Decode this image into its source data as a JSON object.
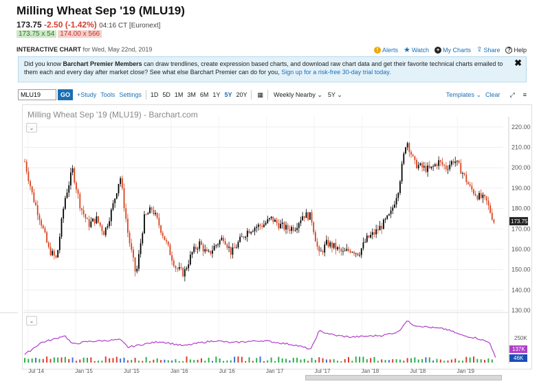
{
  "header": {
    "title": "Milling Wheat Sep '19 (MLU19)",
    "last": "173.75",
    "change": "-2.50 (-1.42%)",
    "time": "04:16 CT [Euronext]",
    "bid": "173.75 x 54",
    "ask": "174.00 x 566",
    "ic_label": "INTERACTIVE CHART",
    "ic_date": "for Wed, May 22nd, 2019"
  },
  "actions": {
    "alerts": "Alerts",
    "watch": "Watch",
    "my_charts": "My Charts",
    "share": "Share",
    "help": "Help"
  },
  "banner": {
    "text_pre": "Did you know ",
    "bold": "Barchart Premier Members",
    "text_post": " can draw trendlines, create expression based charts, and download raw chart data and get their favorite technical charts emailed to them each and every day after market close? See what else Barchart Premier can do for you, ",
    "link": "Sign up for a risk-free 30-day trial today.",
    "close": "✖"
  },
  "toolbar": {
    "symbol": "MLU19",
    "go": "GO",
    "study": "+Study",
    "tools": "Tools",
    "settings": "Settings",
    "periods": [
      "1D",
      "5D",
      "1M",
      "3M",
      "6M",
      "1Y",
      "5Y",
      "20Y"
    ],
    "selected_period": "5Y",
    "interval": "Weekly Nearby",
    "range": "5Y",
    "templates": "Templates",
    "clear": "Clear"
  },
  "colors": {
    "up": "#000000",
    "down": "#d9431e",
    "line": "#b03ec8",
    "accent": "#1a6fb5"
  },
  "chart_data": {
    "type": "candlestick",
    "title": "Milling Wheat Sep '19 (MLU19) - Barchart.com",
    "price_ylim": [
      130,
      225
    ],
    "price_ticks": [
      "220.00",
      "210.00",
      "200.00",
      "190.00",
      "180.00",
      "170.00",
      "160.00",
      "150.00",
      "140.00",
      "130.00"
    ],
    "last_price_label": "173.75",
    "x_ticks": [
      "Jul '14",
      "Jan '15",
      "Jul '15",
      "Jan '16",
      "Jul '16",
      "Jan '17",
      "Jul '17",
      "Jan '18",
      "Jul '18",
      "Jan '19"
    ],
    "x_tick_pos": [
      0.4,
      6.4,
      12.4,
      18.4,
      24.4,
      30.4,
      36.4,
      42.4,
      48.4,
      54.4
    ],
    "x_months": 60,
    "close_path": [
      [
        0,
        203
      ],
      [
        1,
        186
      ],
      [
        2,
        174
      ],
      [
        3,
        160
      ],
      [
        4,
        155
      ],
      [
        5,
        184
      ],
      [
        6,
        199
      ],
      [
        7,
        181
      ],
      [
        8,
        172
      ],
      [
        9,
        175
      ],
      [
        10,
        168
      ],
      [
        11,
        180
      ],
      [
        12,
        196
      ],
      [
        13,
        167
      ],
      [
        14,
        147
      ],
      [
        15,
        175
      ],
      [
        16,
        180
      ],
      [
        17,
        171
      ],
      [
        18,
        161
      ],
      [
        19,
        151
      ],
      [
        20,
        148
      ],
      [
        21,
        158
      ],
      [
        22,
        163
      ],
      [
        23,
        157
      ],
      [
        24,
        162
      ],
      [
        25,
        166
      ],
      [
        26,
        158
      ],
      [
        27,
        164
      ],
      [
        28,
        169
      ],
      [
        29,
        171
      ],
      [
        30,
        172
      ],
      [
        31,
        175
      ],
      [
        32,
        172
      ],
      [
        33,
        170
      ],
      [
        34,
        171
      ],
      [
        35,
        177
      ],
      [
        36,
        176
      ],
      [
        37,
        157
      ],
      [
        38,
        163
      ],
      [
        39,
        161
      ],
      [
        40,
        158
      ],
      [
        41,
        160
      ],
      [
        42,
        158
      ],
      [
        43,
        165
      ],
      [
        44,
        168
      ],
      [
        45,
        172
      ],
      [
        46,
        177
      ],
      [
        47,
        190
      ],
      [
        48,
        214
      ],
      [
        49,
        202
      ],
      [
        50,
        200
      ],
      [
        51,
        199
      ],
      [
        52,
        203
      ],
      [
        53,
        200
      ],
      [
        54,
        204
      ],
      [
        55,
        198
      ],
      [
        56,
        190
      ],
      [
        57,
        186
      ],
      [
        58,
        184
      ],
      [
        59,
        173.75
      ]
    ],
    "oi_label": "250K",
    "oi_value_label": "137K",
    "volume_label": "46K",
    "oi_path": [
      [
        0,
        0.18
      ],
      [
        2,
        0.45
      ],
      [
        4,
        0.55
      ],
      [
        5,
        0.62
      ],
      [
        6,
        0.42
      ],
      [
        8,
        0.48
      ],
      [
        10,
        0.5
      ],
      [
        12,
        0.52
      ],
      [
        13,
        0.35
      ],
      [
        15,
        0.42
      ],
      [
        17,
        0.48
      ],
      [
        18,
        0.45
      ],
      [
        20,
        0.38
      ],
      [
        22,
        0.45
      ],
      [
        24,
        0.5
      ],
      [
        26,
        0.45
      ],
      [
        28,
        0.48
      ],
      [
        30,
        0.5
      ],
      [
        32,
        0.45
      ],
      [
        34,
        0.4
      ],
      [
        36,
        0.3
      ],
      [
        37,
        0.72
      ],
      [
        39,
        0.62
      ],
      [
        41,
        0.58
      ],
      [
        43,
        0.6
      ],
      [
        45,
        0.62
      ],
      [
        47,
        0.7
      ],
      [
        48,
        0.95
      ],
      [
        49,
        0.85
      ],
      [
        51,
        0.8
      ],
      [
        53,
        0.76
      ],
      [
        55,
        0.62
      ],
      [
        57,
        0.55
      ],
      [
        58.5,
        0.45
      ],
      [
        59.2,
        0.1
      ]
    ]
  }
}
